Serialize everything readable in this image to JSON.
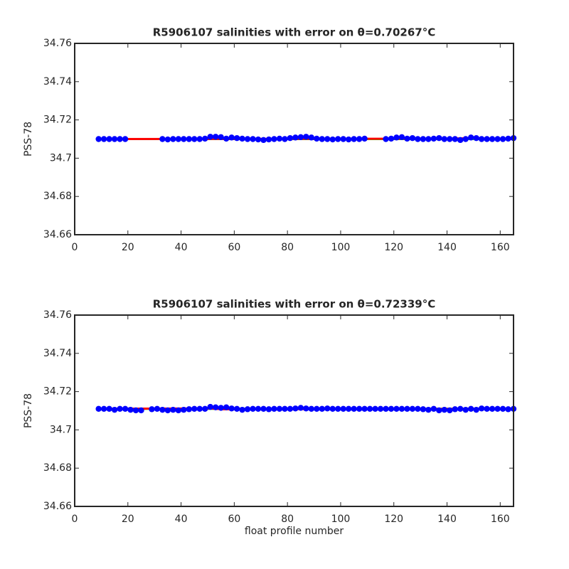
{
  "chart_data": [
    {
      "type": "line",
      "title": "R5906107 salinities with error on θ=0.70267°C",
      "ylabel": "PSS-78",
      "xlim": [
        0,
        165
      ],
      "xticks": [
        0,
        20,
        40,
        60,
        80,
        100,
        120,
        140,
        160
      ],
      "ylim": [
        34.66,
        34.76
      ],
      "yticks": [
        34.66,
        34.68,
        34.7,
        34.72,
        34.74,
        34.76
      ],
      "series": [
        {
          "style": "line",
          "color": "#00ff00",
          "x": [
            9,
            165
          ],
          "values": [
            34.71,
            34.71
          ]
        },
        {
          "style": "line",
          "color": "#ff0000",
          "x": [
            9,
            140,
            150,
            158,
            165
          ],
          "values": [
            34.71,
            34.7102,
            34.7105,
            34.71,
            34.71
          ]
        },
        {
          "style": "markers",
          "color": "#0000ff",
          "x": [
            9,
            11,
            13,
            15,
            17,
            19,
            33,
            35,
            37,
            39,
            41,
            43,
            45,
            47,
            49,
            51,
            53,
            55,
            57,
            59,
            61,
            63,
            65,
            67,
            69,
            71,
            73,
            75,
            77,
            79,
            81,
            83,
            85,
            87,
            89,
            91,
            93,
            95,
            97,
            99,
            101,
            103,
            105,
            107,
            109,
            117,
            119,
            121,
            123,
            125,
            127,
            129,
            131,
            133,
            135,
            137,
            139,
            141,
            143,
            145,
            147,
            149,
            151,
            153,
            155,
            157,
            159,
            161,
            163,
            165
          ],
          "values": [
            34.71,
            34.71,
            34.71,
            34.71,
            34.71,
            34.71,
            34.71,
            34.7098,
            34.71,
            34.71,
            34.71,
            34.71,
            34.71,
            34.71,
            34.7102,
            34.7112,
            34.7112,
            34.711,
            34.7102,
            34.7108,
            34.7105,
            34.7102,
            34.71,
            34.71,
            34.7098,
            34.7095,
            34.7098,
            34.71,
            34.7102,
            34.71,
            34.7105,
            34.7108,
            34.711,
            34.7112,
            34.7108,
            34.7102,
            34.71,
            34.71,
            34.7098,
            34.71,
            34.71,
            34.7098,
            34.71,
            34.71,
            34.7102,
            34.71,
            34.7102,
            34.7108,
            34.711,
            34.7102,
            34.7105,
            34.71,
            34.71,
            34.71,
            34.7102,
            34.7105,
            34.71,
            34.71,
            34.71,
            34.7095,
            34.71,
            34.7108,
            34.7105,
            34.71,
            34.71,
            34.71,
            34.71,
            34.71,
            34.7102,
            34.7105
          ]
        }
      ]
    },
    {
      "type": "line",
      "title": "R5906107 salinities with error on θ=0.72339°C",
      "ylabel": "PSS-78",
      "xlabel": "float profile number",
      "xlim": [
        0,
        165
      ],
      "xticks": [
        0,
        20,
        40,
        60,
        80,
        100,
        120,
        140,
        160
      ],
      "ylim": [
        34.66,
        34.76
      ],
      "yticks": [
        34.66,
        34.68,
        34.7,
        34.72,
        34.74,
        34.76
      ],
      "series": [
        {
          "style": "line",
          "color": "#00ff00",
          "x": [
            9,
            165
          ],
          "values": [
            34.711,
            34.711
          ]
        },
        {
          "style": "line",
          "color": "#ff0000",
          "x": [
            9,
            50,
            56,
            165
          ],
          "values": [
            34.711,
            34.7112,
            34.7108,
            34.711
          ]
        },
        {
          "style": "markers",
          "color": "#0000ff",
          "x": [
            9,
            11,
            13,
            15,
            17,
            19,
            21,
            23,
            25,
            29,
            31,
            33,
            35,
            37,
            39,
            41,
            43,
            45,
            47,
            49,
            51,
            53,
            55,
            57,
            59,
            61,
            63,
            65,
            67,
            69,
            71,
            73,
            75,
            77,
            79,
            81,
            83,
            85,
            87,
            89,
            91,
            93,
            95,
            97,
            99,
            101,
            103,
            105,
            107,
            109,
            111,
            113,
            115,
            117,
            119,
            121,
            123,
            125,
            127,
            129,
            131,
            133,
            135,
            137,
            139,
            141,
            143,
            145,
            147,
            149,
            151,
            153,
            155,
            157,
            159,
            161,
            163,
            165
          ],
          "values": [
            34.711,
            34.711,
            34.711,
            34.7105,
            34.711,
            34.711,
            34.7105,
            34.7102,
            34.7102,
            34.7108,
            34.711,
            34.7105,
            34.7102,
            34.7105,
            34.7102,
            34.7105,
            34.7108,
            34.711,
            34.711,
            34.711,
            34.712,
            34.7118,
            34.7115,
            34.7118,
            34.7112,
            34.711,
            34.7105,
            34.7108,
            34.711,
            34.711,
            34.711,
            34.7108,
            34.711,
            34.711,
            34.711,
            34.711,
            34.7112,
            34.7115,
            34.7112,
            34.711,
            34.711,
            34.711,
            34.7112,
            34.711,
            34.711,
            34.711,
            34.711,
            34.711,
            34.711,
            34.711,
            34.711,
            34.711,
            34.711,
            34.711,
            34.711,
            34.711,
            34.711,
            34.711,
            34.711,
            34.711,
            34.7108,
            34.7105,
            34.711,
            34.7102,
            34.7105,
            34.7102,
            34.7108,
            34.711,
            34.7105,
            34.711,
            34.7105,
            34.7112,
            34.711,
            34.711,
            34.711,
            34.711,
            34.7108,
            34.711
          ]
        }
      ]
    }
  ]
}
